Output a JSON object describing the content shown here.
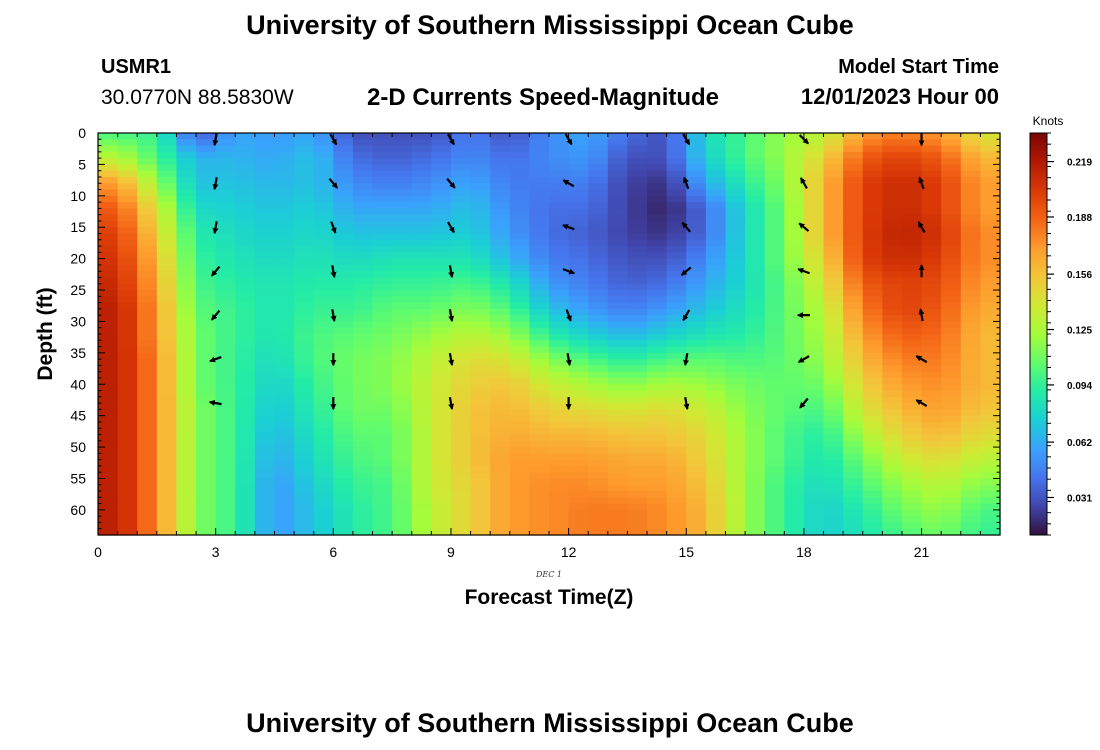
{
  "header": {
    "title": "University of Southern Mississippi Ocean Cube",
    "station": "USMR1",
    "coords": "30.0770N  88.5830W",
    "subtitle": "2-D Currents Speed-Magnitude",
    "start_label": "Model Start Time",
    "start_value": "12/01/2023 Hour 00"
  },
  "footer": {
    "title": "University of Southern Mississippi Ocean Cube"
  },
  "chart_data": {
    "type": "heatmap",
    "title": "2-D Currents Speed-Magnitude",
    "xlabel": "Forecast Time(Z)",
    "ylabel": "Depth (ft)",
    "date_label": "DEC 1",
    "xlim": [
      0,
      23
    ],
    "ylim": [
      0,
      64
    ],
    "x_ticks": [
      0,
      3,
      6,
      9,
      12,
      15,
      18,
      21
    ],
    "y_ticks": [
      0,
      5,
      10,
      15,
      20,
      25,
      30,
      35,
      40,
      45,
      50,
      55,
      60
    ],
    "colorbar": {
      "label": "Knots",
      "ticks": [
        "0.031",
        "0.062",
        "0.094",
        "0.125",
        "0.156",
        "0.188",
        "0.219"
      ],
      "tick_values": [
        0.031,
        0.062,
        0.094,
        0.125,
        0.156,
        0.188,
        0.219
      ],
      "range": [
        0.01,
        0.235
      ],
      "stops": [
        "#30123b",
        "#4145ab",
        "#4675ed",
        "#39a2fc",
        "#1bcfd4",
        "#24eca6",
        "#61fc6c",
        "#a4fc3b",
        "#d1e834",
        "#f3c63a",
        "#fe9b2d",
        "#f36315",
        "#d93806",
        "#b11901",
        "#7a0403"
      ]
    },
    "grid_hours": [
      0.5,
      1.5,
      2.5,
      3.5,
      4.5,
      5.5,
      6.5,
      7.5,
      8.5,
      9.5,
      10.5,
      11.5,
      12.5,
      13.5,
      14.5,
      15.5,
      16.5,
      17.5,
      18.5,
      19.5,
      20.5,
      21.5,
      22.5
    ],
    "grid_depths": [
      0,
      4,
      8,
      12,
      16,
      20,
      24,
      28,
      32,
      36,
      40,
      44,
      48,
      52,
      56,
      60,
      64
    ],
    "speed": [
      [
        0.1,
        0.095,
        0.03,
        0.06,
        0.055,
        0.06,
        0.03,
        0.03,
        0.03,
        0.045,
        0.03,
        0.05,
        0.06,
        0.04,
        0.03,
        0.08,
        0.1,
        0.12,
        0.13,
        0.17,
        0.18,
        0.17,
        0.14
      ],
      [
        0.13,
        0.1,
        0.065,
        0.065,
        0.06,
        0.07,
        0.04,
        0.035,
        0.04,
        0.05,
        0.04,
        0.05,
        0.055,
        0.03,
        0.03,
        0.075,
        0.1,
        0.12,
        0.15,
        0.19,
        0.2,
        0.19,
        0.16
      ],
      [
        0.17,
        0.12,
        0.07,
        0.07,
        0.065,
        0.07,
        0.05,
        0.045,
        0.05,
        0.06,
        0.045,
        0.045,
        0.045,
        0.025,
        0.02,
        0.06,
        0.09,
        0.115,
        0.16,
        0.2,
        0.21,
        0.2,
        0.17
      ],
      [
        0.19,
        0.14,
        0.08,
        0.075,
        0.07,
        0.075,
        0.06,
        0.06,
        0.06,
        0.07,
        0.05,
        0.04,
        0.04,
        0.025,
        0.015,
        0.04,
        0.08,
        0.11,
        0.16,
        0.2,
        0.21,
        0.2,
        0.17
      ],
      [
        0.2,
        0.15,
        0.09,
        0.08,
        0.075,
        0.08,
        0.07,
        0.07,
        0.07,
        0.075,
        0.055,
        0.04,
        0.035,
        0.025,
        0.02,
        0.04,
        0.08,
        0.11,
        0.16,
        0.2,
        0.215,
        0.205,
        0.175
      ],
      [
        0.205,
        0.16,
        0.095,
        0.085,
        0.08,
        0.085,
        0.08,
        0.085,
        0.085,
        0.085,
        0.065,
        0.045,
        0.04,
        0.03,
        0.03,
        0.05,
        0.08,
        0.11,
        0.15,
        0.2,
        0.21,
        0.2,
        0.175
      ],
      [
        0.21,
        0.165,
        0.1,
        0.09,
        0.085,
        0.09,
        0.09,
        0.095,
        0.095,
        0.1,
        0.085,
        0.055,
        0.045,
        0.035,
        0.04,
        0.06,
        0.08,
        0.105,
        0.14,
        0.19,
        0.2,
        0.195,
        0.17
      ],
      [
        0.215,
        0.17,
        0.105,
        0.095,
        0.085,
        0.095,
        0.095,
        0.105,
        0.105,
        0.115,
        0.1,
        0.07,
        0.055,
        0.045,
        0.055,
        0.07,
        0.085,
        0.105,
        0.13,
        0.18,
        0.2,
        0.19,
        0.165
      ],
      [
        0.215,
        0.17,
        0.11,
        0.095,
        0.085,
        0.1,
        0.105,
        0.11,
        0.12,
        0.13,
        0.12,
        0.09,
        0.075,
        0.065,
        0.075,
        0.085,
        0.09,
        0.105,
        0.125,
        0.17,
        0.19,
        0.185,
        0.16
      ],
      [
        0.215,
        0.175,
        0.11,
        0.095,
        0.08,
        0.1,
        0.11,
        0.115,
        0.13,
        0.145,
        0.14,
        0.115,
        0.1,
        0.09,
        0.1,
        0.105,
        0.1,
        0.105,
        0.12,
        0.16,
        0.18,
        0.18,
        0.16
      ],
      [
        0.215,
        0.175,
        0.11,
        0.095,
        0.075,
        0.095,
        0.11,
        0.115,
        0.135,
        0.15,
        0.155,
        0.135,
        0.125,
        0.115,
        0.125,
        0.12,
        0.11,
        0.105,
        0.11,
        0.15,
        0.17,
        0.175,
        0.16
      ],
      [
        0.215,
        0.175,
        0.115,
        0.095,
        0.07,
        0.09,
        0.11,
        0.11,
        0.135,
        0.155,
        0.16,
        0.15,
        0.145,
        0.14,
        0.145,
        0.135,
        0.115,
        0.105,
        0.1,
        0.14,
        0.16,
        0.17,
        0.155
      ],
      [
        0.215,
        0.175,
        0.115,
        0.095,
        0.065,
        0.085,
        0.105,
        0.105,
        0.135,
        0.155,
        0.165,
        0.16,
        0.16,
        0.155,
        0.155,
        0.145,
        0.12,
        0.1,
        0.09,
        0.125,
        0.15,
        0.16,
        0.145
      ],
      [
        0.215,
        0.175,
        0.115,
        0.095,
        0.06,
        0.08,
        0.1,
        0.105,
        0.135,
        0.155,
        0.17,
        0.17,
        0.17,
        0.165,
        0.165,
        0.15,
        0.12,
        0.1,
        0.085,
        0.11,
        0.135,
        0.145,
        0.13
      ],
      [
        0.215,
        0.175,
        0.115,
        0.095,
        0.055,
        0.075,
        0.095,
        0.1,
        0.135,
        0.15,
        0.17,
        0.175,
        0.175,
        0.17,
        0.17,
        0.155,
        0.12,
        0.095,
        0.08,
        0.1,
        0.12,
        0.13,
        0.115
      ],
      [
        0.215,
        0.175,
        0.115,
        0.095,
        0.055,
        0.07,
        0.09,
        0.1,
        0.13,
        0.15,
        0.17,
        0.175,
        0.18,
        0.18,
        0.175,
        0.16,
        0.12,
        0.095,
        0.075,
        0.09,
        0.11,
        0.12,
        0.1
      ],
      [
        0.215,
        0.175,
        0.115,
        0.095,
        0.055,
        0.07,
        0.09,
        0.1,
        0.13,
        0.15,
        0.17,
        0.175,
        0.18,
        0.18,
        0.175,
        0.16,
        0.12,
        0.095,
        0.075,
        0.085,
        0.1,
        0.11,
        0.095
      ]
    ],
    "vectors": {
      "hours": [
        3,
        6,
        9,
        12,
        15,
        18,
        21
      ],
      "depths": [
        1,
        8,
        15,
        22,
        29,
        36,
        43
      ],
      "angles_deg": [
        [
          100,
          60,
          60,
          60,
          60,
          45,
          90
        ],
        [
          100,
          50,
          50,
          210,
          250,
          240,
          250
        ],
        [
          100,
          70,
          60,
          200,
          230,
          220,
          240
        ],
        [
          130,
          80,
          80,
          20,
          140,
          200,
          270
        ],
        [
          130,
          80,
          80,
          70,
          120,
          180,
          260
        ],
        [
          160,
          90,
          80,
          80,
          100,
          150,
          210
        ],
        [
          190,
          90,
          80,
          90,
          80,
          130,
          210
        ]
      ]
    }
  }
}
